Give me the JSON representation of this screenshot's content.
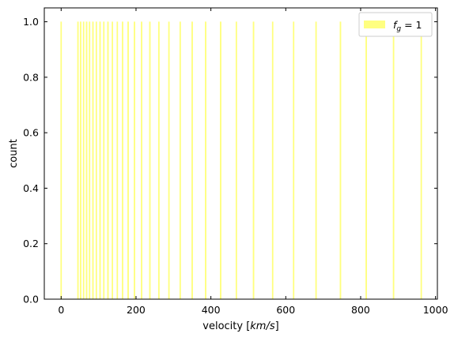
{
  "chart_data": {
    "type": "bar",
    "xlabel_prefix": "velocity [",
    "xlabel_unit": "km/s",
    "xlabel_suffix": "]",
    "ylabel": "count",
    "xlim": [
      -45,
      1005
    ],
    "ylim": [
      0,
      1.05
    ],
    "xticks": [
      0,
      200,
      400,
      600,
      800,
      1000
    ],
    "yticks": [
      0.0,
      0.2,
      0.4,
      0.6,
      0.8,
      1.0
    ],
    "tick_labels_x": [
      "0",
      "200",
      "400",
      "600",
      "800",
      "1000"
    ],
    "tick_labels_y": [
      "0.0",
      "0.2",
      "0.4",
      "0.6",
      "0.8",
      "1.0"
    ],
    "grid": false,
    "legend_position": "top-right",
    "bar_color": "#ffff80",
    "bar_edge_color": "#ffff60",
    "series": [
      {
        "legend_label": "f_g = 1",
        "x": [
          0,
          45,
          52,
          60,
          68,
          76,
          85,
          94,
          104,
          114,
          125,
          137,
          150,
          164,
          179,
          196,
          215,
          237,
          261,
          288,
          318,
          350,
          386,
          426,
          468,
          514,
          565,
          621,
          681,
          746,
          815,
          888,
          962
        ],
        "values": [
          1,
          1,
          1,
          1,
          1,
          1,
          1,
          1,
          1,
          1,
          1,
          1,
          1,
          1,
          1,
          1,
          1,
          1,
          1,
          1,
          1,
          1,
          1,
          1,
          1,
          1,
          1,
          1,
          1,
          1,
          1,
          1,
          1
        ]
      }
    ],
    "legend": {
      "math_var": "f",
      "math_sub": "g",
      "rest": " = 1"
    }
  }
}
